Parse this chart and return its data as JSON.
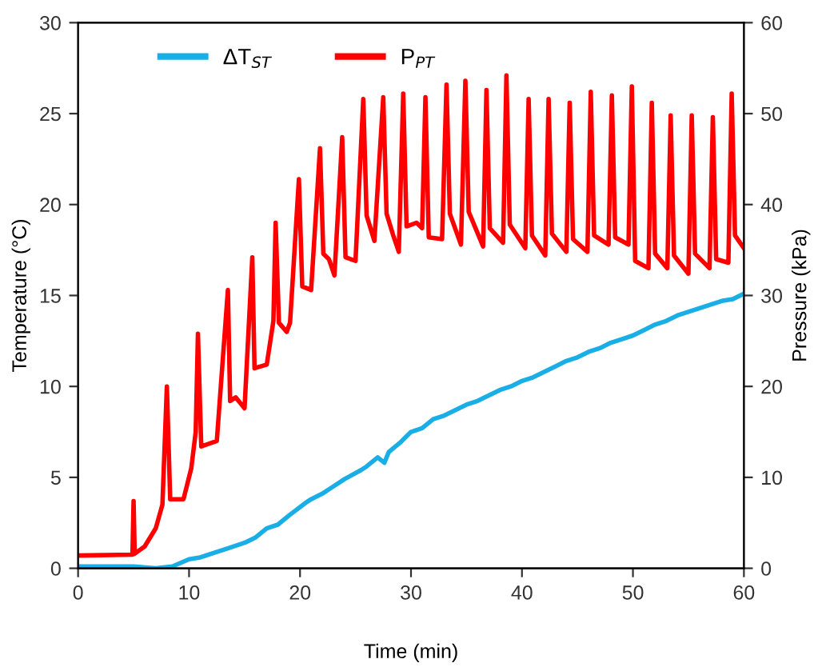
{
  "chart_data": {
    "type": "line",
    "xlabel": "Time (min)",
    "ylabel": "Temperature (°C)",
    "y2label": "Pressure (kPa)",
    "xlim": [
      0,
      60
    ],
    "xticks": [
      0,
      10,
      20,
      30,
      40,
      50,
      60
    ],
    "ylim": [
      0,
      30
    ],
    "yticks": [
      0,
      5,
      10,
      15,
      20,
      25,
      30
    ],
    "y2lim": [
      0,
      60
    ],
    "y2ticks": [
      0,
      10,
      20,
      30,
      40,
      50,
      60
    ],
    "grid": false,
    "legend": "top",
    "marker": "none",
    "line_style": "solid",
    "series": [
      {
        "name": "ΔT$_{ST}$",
        "color": "#1aaee6",
        "x": [
          0,
          1.5,
          3,
          5,
          7,
          8.5,
          10,
          11,
          12,
          13.5,
          15,
          16,
          17,
          18,
          19,
          20.5,
          21,
          22,
          23,
          24,
          25.5,
          26,
          27,
          27.6,
          28,
          29,
          30,
          31,
          32,
          33,
          34,
          35,
          36,
          37,
          38,
          39,
          40,
          41,
          42,
          43,
          44,
          45,
          46,
          47,
          48,
          49,
          50,
          51,
          52,
          53,
          54,
          55,
          56,
          57,
          58,
          59,
          60
        ],
        "values": [
          0.1,
          0.1,
          0.1,
          0.1,
          0.0,
          0.1,
          0.5,
          0.6,
          0.8,
          1.1,
          1.4,
          1.7,
          2.2,
          2.4,
          2.9,
          3.6,
          3.8,
          4.1,
          4.5,
          4.9,
          5.4,
          5.6,
          6.1,
          5.8,
          6.4,
          6.9,
          7.5,
          7.7,
          8.2,
          8.4,
          8.7,
          9.0,
          9.2,
          9.5,
          9.8,
          10.0,
          10.3,
          10.5,
          10.8,
          11.1,
          11.4,
          11.6,
          11.9,
          12.1,
          12.4,
          12.6,
          12.8,
          13.1,
          13.4,
          13.6,
          13.9,
          14.1,
          14.3,
          14.5,
          14.7,
          14.8,
          15.1
        ]
      },
      {
        "name": "P$_{PT}$",
        "color": "#ff0000",
        "axis": "y2",
        "x": [
          0,
          4.9,
          5.0,
          5.1,
          6,
          7,
          7.6,
          8.0,
          8.3,
          9.5,
          10.2,
          10.6,
          10.8,
          11.1,
          12.5,
          13.5,
          13.7,
          14.2,
          15,
          15.7,
          15.9,
          17,
          17.6,
          17.8,
          18.1,
          18.8,
          19.1,
          19.9,
          20.2,
          21,
          21.8,
          22.1,
          22.6,
          23.1,
          23.8,
          24.1,
          25,
          25.7,
          26,
          26.7,
          27.5,
          27.8,
          28.4,
          28.9,
          29.3,
          29.6,
          30.5,
          31,
          31.3,
          31.6,
          32.8,
          33.2,
          33.5,
          34.5,
          34.9,
          35.2,
          36.5,
          36.8,
          37.1,
          38.3,
          38.6,
          38.9,
          40.3,
          40.6,
          40.9,
          42.1,
          42.4,
          42.7,
          44.0,
          44.3,
          44.6,
          45.9,
          46.2,
          46.5,
          47.8,
          48.1,
          48.4,
          49.6,
          49.9,
          50.2,
          51.4,
          51.7,
          52.0,
          53.1,
          53.4,
          53.7,
          55.0,
          55.3,
          55.6,
          56.9,
          57.2,
          57.5,
          58.6,
          58.9,
          59.2,
          60
        ],
        "values": [
          1.4,
          1.5,
          7.4,
          1.6,
          2.4,
          4.4,
          7.0,
          20.0,
          7.6,
          7.6,
          11.0,
          15.0,
          25.8,
          13.4,
          14.0,
          30.6,
          18.4,
          18.8,
          17.6,
          34.2,
          22.0,
          22.4,
          27.2,
          38.0,
          27.0,
          26.0,
          27.0,
          42.8,
          31.0,
          30.6,
          46.2,
          34.6,
          34.0,
          32.2,
          47.4,
          34.2,
          33.8,
          51.6,
          38.8,
          36.0,
          51.8,
          39.0,
          36.6,
          34.8,
          52.2,
          37.6,
          38.0,
          37.4,
          51.8,
          36.4,
          36.2,
          53.2,
          39.0,
          35.6,
          53.6,
          39.2,
          35.4,
          52.6,
          37.4,
          35.8,
          54.2,
          37.8,
          35.2,
          51.6,
          36.6,
          34.4,
          51.6,
          36.8,
          34.8,
          51.2,
          36.2,
          34.8,
          52.4,
          36.6,
          35.6,
          52.0,
          36.4,
          35.6,
          53.0,
          33.8,
          33.0,
          51.2,
          34.6,
          33.0,
          49.8,
          34.4,
          32.4,
          49.8,
          34.6,
          33.0,
          49.6,
          34.0,
          33.6,
          52.2,
          36.6,
          35.2
        ]
      }
    ]
  }
}
